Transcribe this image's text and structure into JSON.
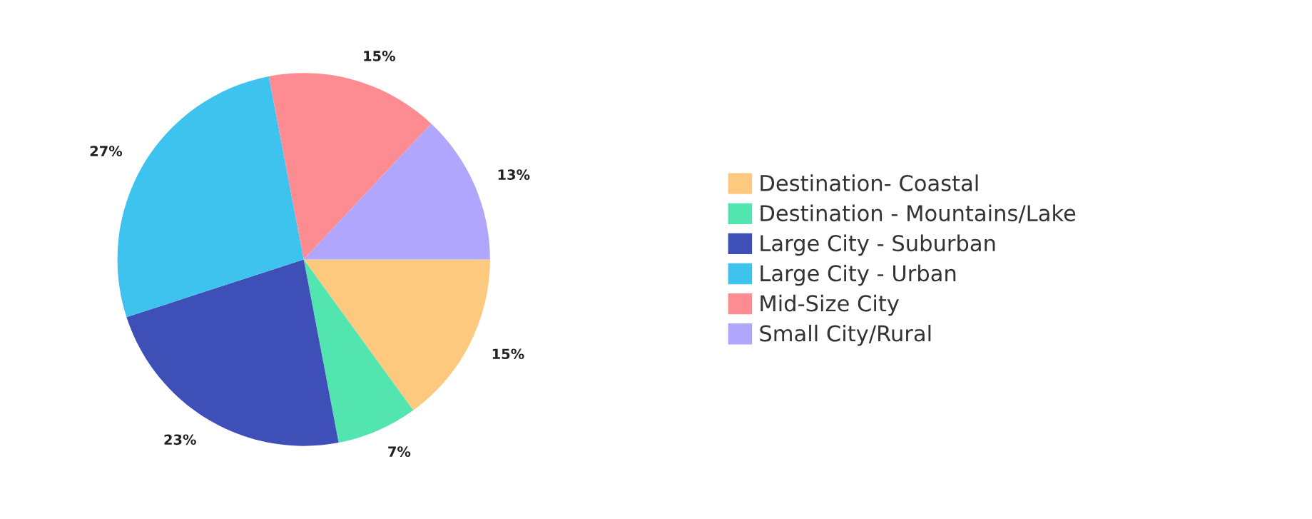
{
  "chart_data": {
    "type": "pie",
    "categories": [
      "Destination- Coastal",
      "Destination - Mountains/Lake",
      "Large City - Suburban",
      "Large City - Urban",
      "Mid-Size City",
      "Small City/Rural"
    ],
    "values": [
      15,
      7,
      23,
      27,
      15,
      13
    ],
    "value_labels": [
      "15%",
      "7%",
      "23%",
      "27%",
      "15%",
      "13%"
    ],
    "colors": [
      "#fdc97f",
      "#53e5b0",
      "#3f4fb8",
      "#3ec3ef",
      "#fd8c92",
      "#b1a6fd"
    ],
    "legend": "right"
  }
}
